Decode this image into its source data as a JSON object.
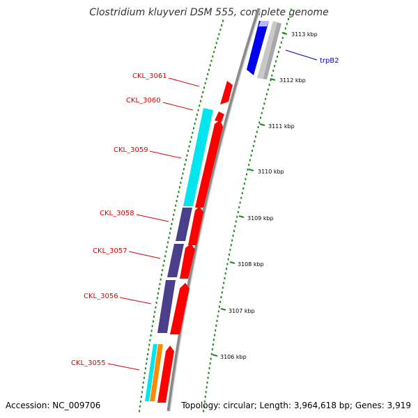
{
  "header": {
    "title": "Clostridium kluyveri DSM 555, complete genome"
  },
  "footer": {
    "accession": "Accession: NC_009706",
    "topology": "Topology: circular; Length: 3,964,618 bp; Genes: 3,919"
  },
  "colors": {
    "backbone": "#8a8a8a",
    "tick": "#1a8a1a",
    "label_red": "#dd0000",
    "label_blue": "#0000cc",
    "gene_red": "#ff0000",
    "gene_blue": "#0000ee",
    "gene_gray": "#c8c8c8",
    "gene_cyan": "#00e5ee",
    "gene_purple": "#4a3f8a",
    "gene_orange": "#ff8c00"
  },
  "scale": {
    "unit": "kbp",
    "ticks": [
      {
        "kbp": 3113,
        "label": "3113 kbp"
      },
      {
        "kbp": 3112,
        "label": "3112 kbp"
      },
      {
        "kbp": 3111,
        "label": "3111 kbp"
      },
      {
        "kbp": 3110,
        "label": "3110 kbp"
      },
      {
        "kbp": 3109,
        "label": "3109 kbp"
      },
      {
        "kbp": 3108,
        "label": "3108 kbp"
      },
      {
        "kbp": 3107,
        "label": "3107 kbp"
      },
      {
        "kbp": 3106,
        "label": "3106 kbp"
      }
    ]
  },
  "labels": {
    "trpB2": "trpB2",
    "CKL_3061": "CKL_3061",
    "CKL_3060": "CKL_3060",
    "CKL_3059": "CKL_3059",
    "CKL_3058": "CKL_3058",
    "CKL_3057": "CKL_3057",
    "CKL_3056": "CKL_3056",
    "CKL_3055": "CKL_3055"
  }
}
